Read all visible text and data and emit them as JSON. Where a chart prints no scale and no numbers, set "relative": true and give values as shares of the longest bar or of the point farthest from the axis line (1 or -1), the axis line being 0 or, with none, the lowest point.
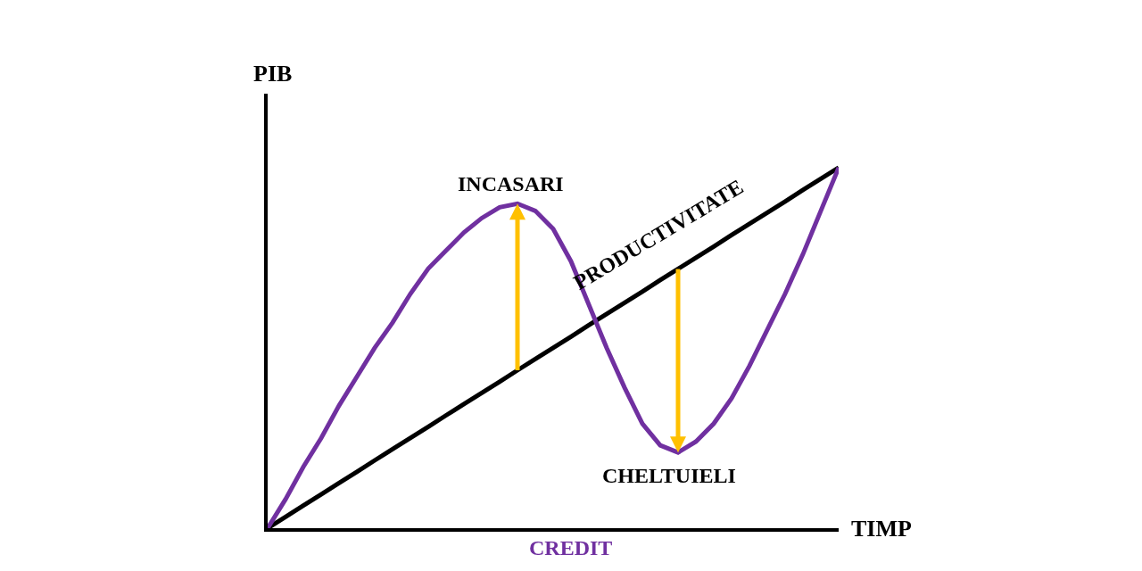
{
  "chart_data": {
    "type": "line",
    "relative": true,
    "xlabel": "TIMP",
    "ylabel": "PIB",
    "categories": [
      null,
      null,
      null,
      null,
      null,
      null,
      null,
      null,
      null,
      null,
      null,
      null,
      null,
      null,
      null,
      null,
      null,
      null,
      null,
      null,
      null,
      null,
      null,
      null,
      null,
      null,
      null,
      null,
      null,
      null,
      null,
      null,
      null
    ],
    "series": [
      {
        "name": "PRODUCTIVITATE",
        "color": "#000000",
        "values": [
          0,
          0.031,
          0.063,
          0.094,
          0.125,
          0.156,
          0.188,
          0.219,
          0.25,
          0.281,
          0.313,
          0.344,
          0.375,
          0.406,
          0.438,
          0.469,
          0.5,
          0.531,
          0.563,
          0.594,
          0.625,
          0.656,
          0.688,
          0.719,
          0.75,
          0.781,
          0.813,
          0.844,
          0.875,
          0.906,
          0.938,
          0.969,
          1
        ]
      },
      {
        "name": "CREDIT",
        "color": "#7030a0",
        "values": [
          0,
          0.08,
          0.17,
          0.25,
          0.34,
          0.42,
          0.5,
          0.57,
          0.65,
          0.72,
          0.77,
          0.82,
          0.86,
          0.89,
          0.9,
          0.88,
          0.83,
          0.74,
          0.62,
          0.5,
          0.39,
          0.29,
          0.23,
          0.21,
          0.24,
          0.29,
          0.36,
          0.45,
          0.55,
          0.65,
          0.76,
          0.88,
          1
        ]
      }
    ],
    "annotations": [
      "INCASARI",
      "CHELTUIELI"
    ],
    "legend": false,
    "marker": "none",
    "line_style": "solid"
  }
}
